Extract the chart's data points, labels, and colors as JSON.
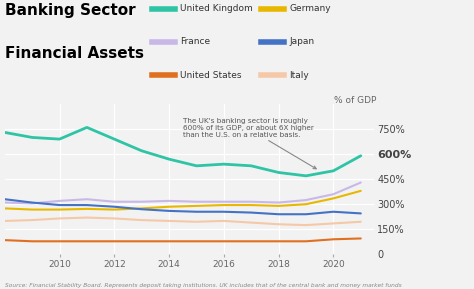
{
  "title_line1": "Banking Sector",
  "title_line2": "Financial Assets",
  "ylabel": "% of GDP",
  "source": "Source: Financial Stability Board. Represents deposit taking institutions. UK includes that of the central bank and money market funds",
  "annotation": "The UK's banking sector is roughly\n600% of its GDP, or about 6X higher\nthan the U.S. on a relative basis.",
  "xlim": [
    2008,
    2021.5
  ],
  "ylim": [
    0,
    900
  ],
  "yticks": [
    0,
    150,
    300,
    450,
    600,
    750
  ],
  "ytick_labels": [
    "0",
    "150%",
    "300%",
    "450%",
    "600%",
    "750%"
  ],
  "xticks": [
    2010,
    2012,
    2014,
    2016,
    2018,
    2020
  ],
  "background_color": "#f2f2f2",
  "series": {
    "United Kingdom": {
      "color": "#2ec4a5",
      "years": [
        2008,
        2009,
        2010,
        2011,
        2012,
        2013,
        2014,
        2015,
        2016,
        2017,
        2018,
        2019,
        2020,
        2021
      ],
      "values": [
        730,
        700,
        690,
        760,
        690,
        620,
        570,
        530,
        540,
        530,
        490,
        470,
        500,
        590
      ]
    },
    "France": {
      "color": "#c8b8e8",
      "years": [
        2008,
        2009,
        2010,
        2011,
        2012,
        2013,
        2014,
        2015,
        2016,
        2017,
        2018,
        2019,
        2020,
        2021
      ],
      "values": [
        310,
        305,
        320,
        330,
        315,
        315,
        320,
        315,
        315,
        315,
        310,
        325,
        360,
        430
      ]
    },
    "United States": {
      "color": "#e07020",
      "years": [
        2008,
        2009,
        2010,
        2011,
        2012,
        2013,
        2014,
        2015,
        2016,
        2017,
        2018,
        2019,
        2020,
        2021
      ],
      "values": [
        85,
        78,
        78,
        78,
        78,
        78,
        78,
        78,
        78,
        78,
        78,
        78,
        90,
        95
      ]
    },
    "Germany": {
      "color": "#e8b800",
      "years": [
        2008,
        2009,
        2010,
        2011,
        2012,
        2013,
        2014,
        2015,
        2016,
        2017,
        2018,
        2019,
        2020,
        2021
      ],
      "values": [
        275,
        268,
        268,
        272,
        268,
        275,
        285,
        290,
        295,
        295,
        290,
        300,
        335,
        380
      ]
    },
    "Japan": {
      "color": "#4472c4",
      "years": [
        2008,
        2009,
        2010,
        2011,
        2012,
        2013,
        2014,
        2015,
        2016,
        2017,
        2018,
        2019,
        2020,
        2021
      ],
      "values": [
        330,
        310,
        295,
        295,
        285,
        270,
        260,
        255,
        255,
        250,
        240,
        240,
        255,
        245
      ]
    },
    "Italy": {
      "color": "#f5c8a8",
      "years": [
        2008,
        2009,
        2010,
        2011,
        2012,
        2013,
        2014,
        2015,
        2016,
        2017,
        2018,
        2019,
        2020,
        2021
      ],
      "values": [
        200,
        205,
        215,
        220,
        215,
        205,
        200,
        195,
        200,
        190,
        180,
        175,
        185,
        195
      ]
    }
  },
  "legend_col1": [
    "United Kingdom",
    "France",
    "United States"
  ],
  "legend_col2": [
    "Germany",
    "Japan",
    "Italy"
  ]
}
